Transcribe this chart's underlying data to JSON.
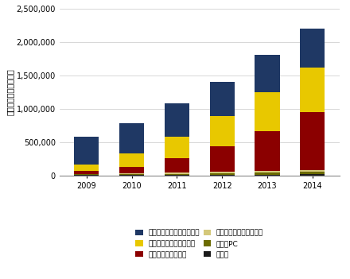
{
  "years": [
    2009,
    2010,
    2011,
    2012,
    2013,
    2014
  ],
  "series": {
    "その他": [
      8000,
      10000,
      12000,
      15000,
      18000,
      22000
    ],
    "ブレーPC": [
      12000,
      15000,
      18000,
      22000,
      27000,
      33000
    ],
    "イメージストリーミング": [
      8000,
      12000,
      18000,
      22000,
      27000,
      33000
    ],
    "デスクトップ仳想化": [
      40000,
      100000,
      210000,
      380000,
      600000,
      860000
    ],
    "アプリケーション仳想化": [
      100000,
      195000,
      325000,
      455000,
      575000,
      665000
    ],
    "プレゼンテーション仳想化": [
      412000,
      448000,
      497000,
      506000,
      553000,
      587000
    ]
  },
  "colors": {
    "その他": "#1a1a1a",
    "ブレーPC": "#6b6b00",
    "イメージストリーミング": "#d4c87a",
    "デスクトップ仳想化": "#8b0000",
    "アプリケーション仳想化": "#e8c800",
    "プレゼンテーション仳想化": "#1f3864"
  },
  "ylabel": "（出荷ライセンス数）",
  "ylim": [
    0,
    2500000
  ],
  "yticks": [
    0,
    500000,
    1000000,
    1500000,
    2000000,
    2500000
  ],
  "stack_order": [
    "その他",
    "ブレーPC",
    "イメージストリーミング",
    "デスクトップ仳想化",
    "アプリケーション仳想化",
    "プレゼンテーション仳想化"
  ],
  "legend_order": [
    "プレゼンテーション仳想化",
    "アプリケーション仳想化",
    "デスクトップ仳想化",
    "イメージストリーミング",
    "ブレーPC",
    "その他"
  ],
  "background_color": "#ffffff",
  "bar_width": 0.55,
  "font_size_tick": 7,
  "font_size_ylabel": 7,
  "font_size_legend": 6.5
}
